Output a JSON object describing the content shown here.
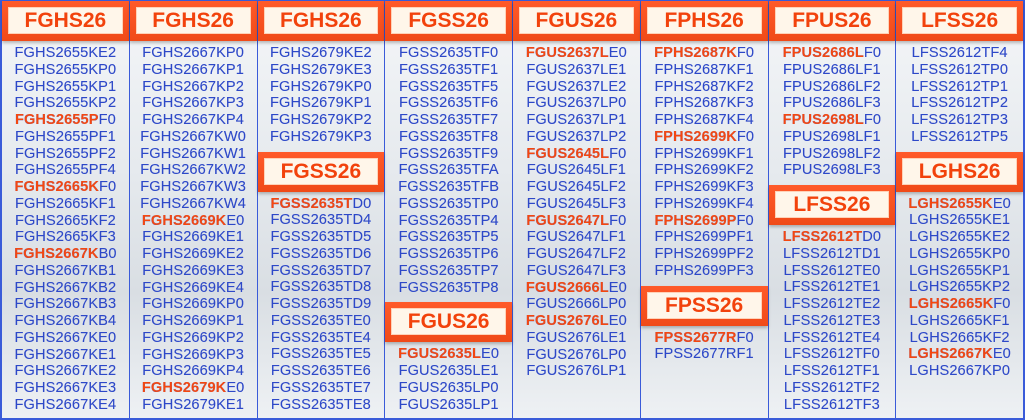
{
  "colors": {
    "accent": "#f5470f",
    "text": "#2d48c8",
    "border": "#3a5bd9"
  },
  "columns": [
    {
      "sections": [
        {
          "title": "FGHS26",
          "items": [
            "FGHS2655KE2",
            "FGHS2655KP0",
            "FGHS2655KP1",
            "FGHS2655KP2",
            {
              "hl": "FGHS2655P",
              "rest": "F0"
            },
            "FGHS2655PF1",
            "FGHS2655PF2",
            "FGHS2655PF4",
            {
              "hl": "FGHS2665K",
              "rest": "F0"
            },
            "FGHS2665KF1",
            "FGHS2665KF2",
            "FGHS2665KF3",
            {
              "hl": "FGHS2667K",
              "rest": "B0"
            },
            "FGHS2667KB1",
            "FGHS2667KB2",
            "FGHS2667KB3",
            "FGHS2667KB4",
            "FGHS2667KE0",
            "FGHS2667KE1",
            "FGHS2667KE2",
            "FGHS2667KE3",
            "FGHS2667KE4"
          ]
        }
      ]
    },
    {
      "sections": [
        {
          "title": "FGHS26",
          "items": [
            "FGHS2667KP0",
            "FGHS2667KP1",
            "FGHS2667KP2",
            "FGHS2667KP3",
            "FGHS2667KP4",
            "FGHS2667KW0",
            "FGHS2667KW1",
            "FGHS2667KW2",
            "FGHS2667KW3",
            "FGHS2667KW4",
            {
              "hl": "FGHS2669K",
              "rest": "E0"
            },
            "FGHS2669KE1",
            "FGHS2669KE2",
            "FGHS2669KE3",
            "FGHS2669KE4",
            "FGHS2669KP0",
            "FGHS2669KP1",
            "FGHS2669KP2",
            "FGHS2669KP3",
            "FGHS2669KP4",
            {
              "hl": "FGHS2679K",
              "rest": "E0"
            },
            "FGHS2679KE1"
          ]
        }
      ]
    },
    {
      "sections": [
        {
          "title": "FGHS26",
          "items": [
            "FGHS2679KE2",
            "FGHS2679KE3",
            "FGHS2679KP0",
            "FGHS2679KP1",
            "FGHS2679KP2",
            "FGHS2679KP3"
          ]
        },
        {
          "title": "FGSS26",
          "items": [
            {
              "hl": "FGSS2635T",
              "rest": "D0"
            },
            "FGSS2635TD4",
            "FGSS2635TD5",
            "FGSS2635TD6",
            "FGSS2635TD7",
            "FGSS2635TD8",
            "FGSS2635TD9",
            "FGSS2635TE0",
            "FGSS2635TE4",
            "FGSS2635TE5",
            "FGSS2635TE6",
            "FGSS2635TE7",
            "FGSS2635TE8"
          ]
        }
      ]
    },
    {
      "sections": [
        {
          "title": "FGSS26",
          "items": [
            "FGSS2635TF0",
            "FGSS2635TF1",
            "FGSS2635TF5",
            "FGSS2635TF6",
            "FGSS2635TF7",
            "FGSS2635TF8",
            "FGSS2635TF9",
            "FGSS2635TFA",
            "FGSS2635TFB",
            "FGSS2635TP0",
            "FGSS2635TP4",
            "FGSS2635TP5",
            "FGSS2635TP6",
            "FGSS2635TP7",
            "FGSS2635TP8"
          ]
        },
        {
          "title": "FGUS26",
          "items": [
            {
              "hl": "FGUS2635L",
              "rest": "E0"
            },
            "FGUS2635LE1",
            "FGUS2635LP0",
            "FGUS2635LP1"
          ]
        }
      ]
    },
    {
      "sections": [
        {
          "title": "FGUS26",
          "items": [
            {
              "hl": "FGUS2637L",
              "rest": "E0"
            },
            "FGUS2637LE1",
            "FGUS2637LE2",
            "FGUS2637LP0",
            "FGUS2637LP1",
            "FGUS2637LP2",
            {
              "hl": "FGUS2645L",
              "rest": "F0"
            },
            "FGUS2645LF1",
            "FGUS2645LF2",
            "FGUS2645LF3",
            {
              "hl": "FGUS2647L",
              "rest": "F0"
            },
            "FGUS2647LF1",
            "FGUS2647LF2",
            "FGUS2647LF3",
            {
              "hl": "FGUS2666L",
              "rest": "E0"
            },
            "FGUS2666LP0",
            {
              "hl": "FGUS2676L",
              "rest": "E0"
            },
            "FGUS2676LE1",
            "FGUS2676LP0",
            "FGUS2676LP1"
          ]
        }
      ]
    },
    {
      "sections": [
        {
          "title": "FPHS26",
          "items": [
            {
              "hl": "FPHS2687K",
              "rest": "F0"
            },
            "FPHS2687KF1",
            "FPHS2687KF2",
            "FPHS2687KF3",
            "FPHS2687KF4",
            {
              "hl": "FPHS2699K",
              "rest": "F0"
            },
            "FPHS2699KF1",
            "FPHS2699KF2",
            "FPHS2699KF3",
            "FPHS2699KF4",
            {
              "hl": "FPHS2699P",
              "rest": "F0"
            },
            "FPHS2699PF1",
            "FPHS2699PF2",
            "FPHS2699PF3"
          ]
        },
        {
          "title": "FPSS26",
          "items": [
            {
              "hl": "FPSS2677R",
              "rest": "F0"
            },
            "FPSS2677RF1"
          ]
        }
      ]
    },
    {
      "sections": [
        {
          "title": "FPUS26",
          "items": [
            {
              "hl": "FPUS2686L",
              "rest": "F0"
            },
            "FPUS2686LF1",
            "FPUS2686LF2",
            "FPUS2686LF3",
            {
              "hl": "FPUS2698L",
              "rest": "F0"
            },
            "FPUS2698LF1",
            "FPUS2698LF2",
            "FPUS2698LF3"
          ]
        },
        {
          "title": "LFSS26",
          "items": [
            {
              "hl": "LFSS2612T",
              "rest": "D0"
            },
            "LFSS2612TD1",
            "LFSS2612TE0",
            "LFSS2612TE1",
            "LFSS2612TE2",
            "LFSS2612TE3",
            "LFSS2612TE4",
            "LFSS2612TF0",
            "LFSS2612TF1",
            "LFSS2612TF2",
            "LFSS2612TF3"
          ]
        }
      ]
    },
    {
      "sections": [
        {
          "title": "LFSS26",
          "items": [
            "LFSS2612TF4",
            "LFSS2612TP0",
            "LFSS2612TP1",
            "LFSS2612TP2",
            "LFSS2612TP3",
            "LFSS2612TP5"
          ]
        },
        {
          "title": "LGHS26",
          "items": [
            {
              "hl": "LGHS2655K",
              "rest": "E0"
            },
            "LGHS2655KE1",
            "LGHS2655KE2",
            "LGHS2655KP0",
            "LGHS2655KP1",
            "LGHS2655KP2",
            {
              "hl": "LGHS2665K",
              "rest": "F0"
            },
            "LGHS2665KF1",
            "LGHS2665KF2",
            {
              "hl": "LGHS2667K",
              "rest": "E0"
            },
            "LGHS2667KP0"
          ]
        }
      ]
    }
  ]
}
